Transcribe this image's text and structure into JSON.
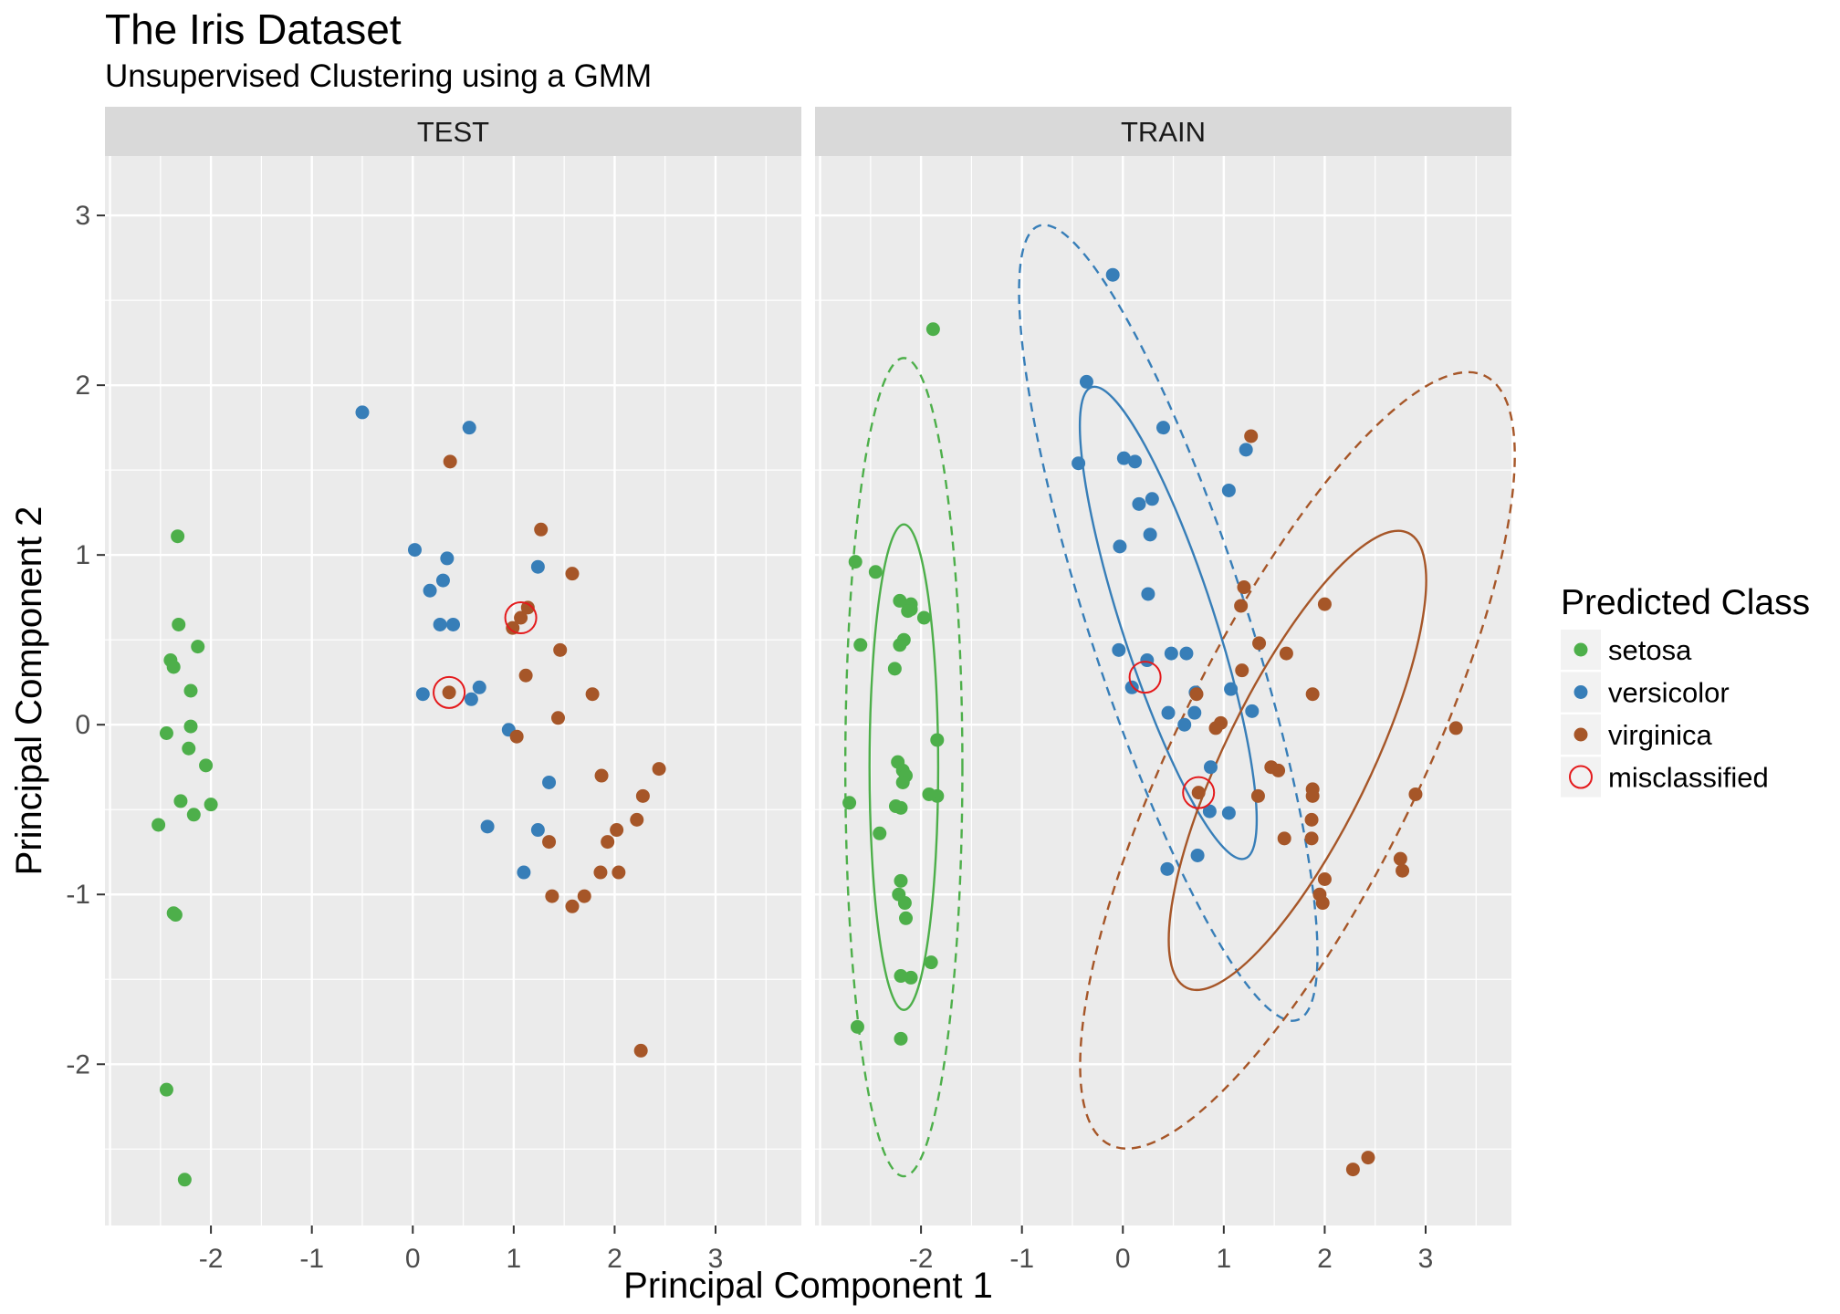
{
  "chart_data": {
    "type": "scatter",
    "title": "The Iris Dataset",
    "subtitle": "Unsupervised Clustering using a GMM",
    "xlabel": "Principal Component 1",
    "ylabel": "Principal Component 2",
    "xlim": [
      -3.05,
      3.85
    ],
    "ylim": [
      -2.95,
      3.35
    ],
    "x_ticks": [
      -2,
      -1,
      0,
      1,
      2,
      3
    ],
    "y_ticks": [
      -2,
      -1,
      0,
      1,
      2,
      3
    ],
    "grid": true,
    "legend": {
      "title": "Predicted Class",
      "position": "right",
      "entries": [
        "setosa",
        "versicolor",
        "virginica",
        "misclassified"
      ]
    },
    "colors": {
      "setosa": "#4daf4a",
      "versicolor": "#377eb8",
      "virginica": "#a65628",
      "misclassified": "#e41a1c",
      "panel_background": "#ebebeb",
      "strip_background": "#d9d9d9",
      "grid": "#ffffff"
    },
    "facets": [
      {
        "name": "TEST",
        "points": {
          "setosa": [
            [
              -2.33,
              1.11
            ],
            [
              -2.32,
              0.59
            ],
            [
              -2.13,
              0.46
            ],
            [
              -2.4,
              0.38
            ],
            [
              -2.37,
              0.34
            ],
            [
              -2.2,
              0.2
            ],
            [
              -2.2,
              -0.01
            ],
            [
              -2.44,
              -0.05
            ],
            [
              -2.22,
              -0.14
            ],
            [
              -2.05,
              -0.24
            ],
            [
              -2.3,
              -0.45
            ],
            [
              -2.0,
              -0.47
            ],
            [
              -2.17,
              -0.53
            ],
            [
              -2.52,
              -0.59
            ],
            [
              -2.35,
              -1.12
            ],
            [
              -2.37,
              -1.11
            ],
            [
              -2.44,
              -2.15
            ],
            [
              -2.26,
              -2.68
            ]
          ],
          "versicolor": [
            [
              -0.5,
              1.84
            ],
            [
              0.56,
              1.75
            ],
            [
              0.02,
              1.03
            ],
            [
              0.34,
              0.98
            ],
            [
              0.3,
              0.85
            ],
            [
              0.17,
              0.79
            ],
            [
              0.27,
              0.59
            ],
            [
              0.4,
              0.59
            ],
            [
              1.24,
              0.93
            ],
            [
              0.1,
              0.18
            ],
            [
              0.66,
              0.22
            ],
            [
              0.58,
              0.15
            ],
            [
              0.95,
              -0.03
            ],
            [
              1.35,
              -0.34
            ],
            [
              0.74,
              -0.6
            ],
            [
              1.24,
              -0.62
            ],
            [
              1.1,
              -0.87
            ]
          ],
          "virginica": [
            [
              0.37,
              1.55
            ],
            [
              1.27,
              1.15
            ],
            [
              1.58,
              0.89
            ],
            [
              1.14,
              0.69
            ],
            [
              1.07,
              0.63
            ],
            [
              0.99,
              0.57
            ],
            [
              1.46,
              0.44
            ],
            [
              1.78,
              0.18
            ],
            [
              1.12,
              0.29
            ],
            [
              0.36,
              0.19
            ],
            [
              1.44,
              0.04
            ],
            [
              1.03,
              -0.07
            ],
            [
              2.44,
              -0.26
            ],
            [
              1.87,
              -0.3
            ],
            [
              2.28,
              -0.42
            ],
            [
              2.22,
              -0.56
            ],
            [
              2.02,
              -0.62
            ],
            [
              1.93,
              -0.69
            ],
            [
              1.35,
              -0.69
            ],
            [
              2.04,
              -0.87
            ],
            [
              1.86,
              -0.87
            ],
            [
              1.38,
              -1.01
            ],
            [
              1.7,
              -1.01
            ],
            [
              1.58,
              -1.07
            ],
            [
              2.26,
              -1.92
            ]
          ]
        },
        "misclassified": [
          [
            0.36,
            0.19
          ],
          [
            1.07,
            0.63
          ]
        ],
        "ellipses": []
      },
      {
        "name": "TRAIN",
        "points": {
          "setosa": [
            [
              -1.88,
              2.33
            ],
            [
              -2.65,
              0.96
            ],
            [
              -2.45,
              0.9
            ],
            [
              -2.21,
              0.73
            ],
            [
              -2.1,
              0.71
            ],
            [
              -2.1,
              0.68
            ],
            [
              -2.13,
              0.67
            ],
            [
              -1.97,
              0.63
            ],
            [
              -2.21,
              0.47
            ],
            [
              -2.17,
              0.5
            ],
            [
              -2.6,
              0.47
            ],
            [
              -2.26,
              0.33
            ],
            [
              -1.84,
              -0.09
            ],
            [
              -2.23,
              -0.22
            ],
            [
              -2.18,
              -0.27
            ],
            [
              -2.15,
              -0.3
            ],
            [
              -2.18,
              -0.34
            ],
            [
              -2.71,
              -0.46
            ],
            [
              -1.84,
              -0.42
            ],
            [
              -1.92,
              -0.41
            ],
            [
              -2.25,
              -0.48
            ],
            [
              -2.2,
              -0.49
            ],
            [
              -2.41,
              -0.64
            ],
            [
              -2.2,
              -0.92
            ],
            [
              -2.22,
              -1.0
            ],
            [
              -2.16,
              -1.05
            ],
            [
              -2.15,
              -1.14
            ],
            [
              -1.9,
              -1.4
            ],
            [
              -2.1,
              -1.49
            ],
            [
              -2.2,
              -1.48
            ],
            [
              -2.63,
              -1.78
            ],
            [
              -2.2,
              -1.85
            ]
          ],
          "versicolor": [
            [
              -0.1,
              2.65
            ],
            [
              -0.36,
              2.02
            ],
            [
              -0.44,
              1.54
            ],
            [
              0.4,
              1.75
            ],
            [
              1.22,
              1.62
            ],
            [
              0.01,
              1.57
            ],
            [
              0.12,
              1.55
            ],
            [
              0.29,
              1.33
            ],
            [
              0.16,
              1.3
            ],
            [
              0.27,
              1.12
            ],
            [
              1.05,
              1.38
            ],
            [
              -0.03,
              1.05
            ],
            [
              0.25,
              0.77
            ],
            [
              -0.04,
              0.44
            ],
            [
              0.48,
              0.42
            ],
            [
              0.63,
              0.42
            ],
            [
              0.24,
              0.38
            ],
            [
              0.09,
              0.22
            ],
            [
              0.72,
              0.19
            ],
            [
              1.07,
              0.21
            ],
            [
              0.45,
              0.07
            ],
            [
              0.71,
              0.07
            ],
            [
              1.28,
              0.08
            ],
            [
              0.61,
              0.0
            ],
            [
              0.87,
              -0.25
            ],
            [
              1.05,
              -0.52
            ],
            [
              0.86,
              -0.51
            ],
            [
              0.74,
              -0.77
            ],
            [
              0.44,
              -0.85
            ]
          ],
          "virginica": [
            [
              1.27,
              1.7
            ],
            [
              1.2,
              0.81
            ],
            [
              2.0,
              0.71
            ],
            [
              1.17,
              0.7
            ],
            [
              1.35,
              0.48
            ],
            [
              1.62,
              0.42
            ],
            [
              1.18,
              0.32
            ],
            [
              1.88,
              0.18
            ],
            [
              0.73,
              0.18
            ],
            [
              0.97,
              0.01
            ],
            [
              0.92,
              -0.02
            ],
            [
              3.3,
              -0.02
            ],
            [
              1.47,
              -0.25
            ],
            [
              1.54,
              -0.27
            ],
            [
              1.88,
              -0.38
            ],
            [
              1.88,
              -0.42
            ],
            [
              1.34,
              -0.42
            ],
            [
              2.9,
              -0.41
            ],
            [
              0.75,
              -0.4
            ],
            [
              1.87,
              -0.56
            ],
            [
              1.6,
              -0.67
            ],
            [
              1.87,
              -0.67
            ],
            [
              2.75,
              -0.79
            ],
            [
              2.77,
              -0.86
            ],
            [
              2.0,
              -0.91
            ],
            [
              1.95,
              -1.0
            ],
            [
              1.98,
              -1.05
            ],
            [
              2.43,
              -2.55
            ],
            [
              2.28,
              -2.62
            ]
          ]
        },
        "misclassified": [
          [
            0.22,
            0.28
          ],
          [
            0.75,
            -0.4
          ]
        ],
        "ellipses": [
          {
            "class": "setosa",
            "style": "solid",
            "cx": -2.17,
            "cy": -0.25,
            "rx": 0.34,
            "ry": 1.43,
            "angle": 0
          },
          {
            "class": "setosa",
            "style": "dashed",
            "cx": -2.17,
            "cy": -0.25,
            "rx": 0.58,
            "ry": 2.41,
            "angle": 0
          },
          {
            "class": "versicolor",
            "style": "solid",
            "cx": 0.45,
            "cy": 0.6,
            "rx": 0.46,
            "ry": 1.46,
            "angle": -18
          },
          {
            "class": "versicolor",
            "style": "dashed",
            "cx": 0.45,
            "cy": 0.6,
            "rx": 0.78,
            "ry": 2.46,
            "angle": -18
          },
          {
            "class": "virginica",
            "style": "solid",
            "cx": 1.73,
            "cy": -0.21,
            "rx": 0.72,
            "ry": 1.49,
            "angle": 26
          },
          {
            "class": "virginica",
            "style": "dashed",
            "cx": 1.73,
            "cy": -0.21,
            "rx": 1.21,
            "ry": 2.52,
            "angle": 26
          }
        ]
      }
    ]
  }
}
